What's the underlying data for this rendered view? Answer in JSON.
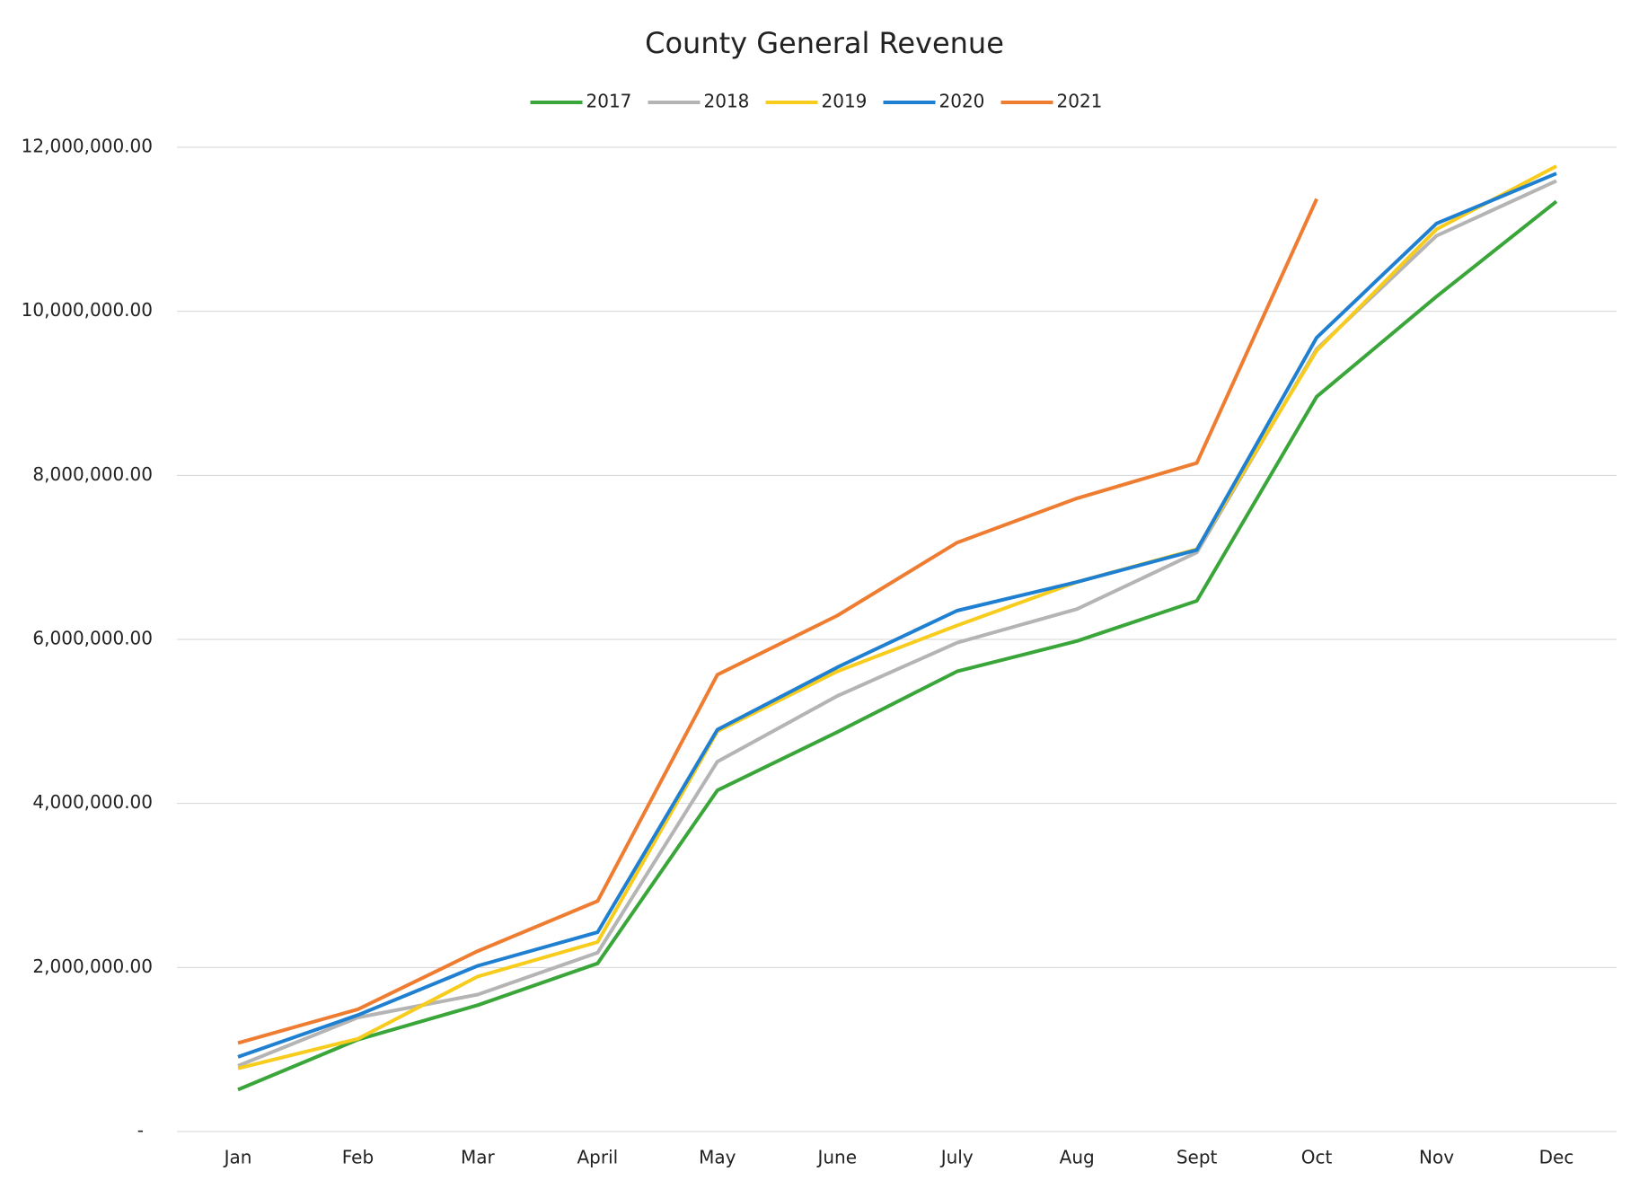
{
  "chart_data": {
    "type": "line",
    "title": "County General Revenue",
    "categories": [
      "Jan",
      "Feb",
      "Mar",
      "April",
      "May",
      "June",
      "July",
      "Aug",
      "Sept",
      "Oct",
      "Nov",
      "Dec"
    ],
    "series": [
      {
        "name": "2017",
        "color": "#3aa63a",
        "values": [
          510000,
          1120000,
          1540000,
          2050000,
          4160000,
          4870000,
          5610000,
          5980000,
          6470000,
          8960000,
          10180000,
          11340000
        ]
      },
      {
        "name": "2018",
        "color": "#b4b4b4",
        "values": [
          800000,
          1390000,
          1670000,
          2180000,
          4510000,
          5310000,
          5960000,
          6370000,
          7060000,
          9540000,
          10920000,
          11590000
        ]
      },
      {
        "name": "2019",
        "color": "#f7cc1c",
        "values": [
          770000,
          1130000,
          1890000,
          2310000,
          4880000,
          5610000,
          6170000,
          6700000,
          7100000,
          9520000,
          11000000,
          11770000
        ]
      },
      {
        "name": "2020",
        "color": "#1f7fd0",
        "values": [
          910000,
          1420000,
          2020000,
          2430000,
          4900000,
          5660000,
          6350000,
          6700000,
          7090000,
          9680000,
          11070000,
          11680000
        ]
      },
      {
        "name": "2021",
        "color": "#ee7d32",
        "values": [
          1080000,
          1490000,
          2200000,
          2810000,
          5570000,
          6290000,
          7180000,
          7720000,
          8150000,
          11370000,
          null,
          null
        ]
      }
    ],
    "ylim": [
      0,
      12000000
    ],
    "yticks": [
      {
        "value": 0,
        "label": "-"
      },
      {
        "value": 2000000,
        "label": "2,000,000.00"
      },
      {
        "value": 4000000,
        "label": "4,000,000.00"
      },
      {
        "value": 6000000,
        "label": "6,000,000.00"
      },
      {
        "value": 8000000,
        "label": "8,000,000.00"
      },
      {
        "value": 10000000,
        "label": "10,000,000.00"
      },
      {
        "value": 12000000,
        "label": "12,000,000.00"
      }
    ],
    "grid": true,
    "legend": "top"
  }
}
